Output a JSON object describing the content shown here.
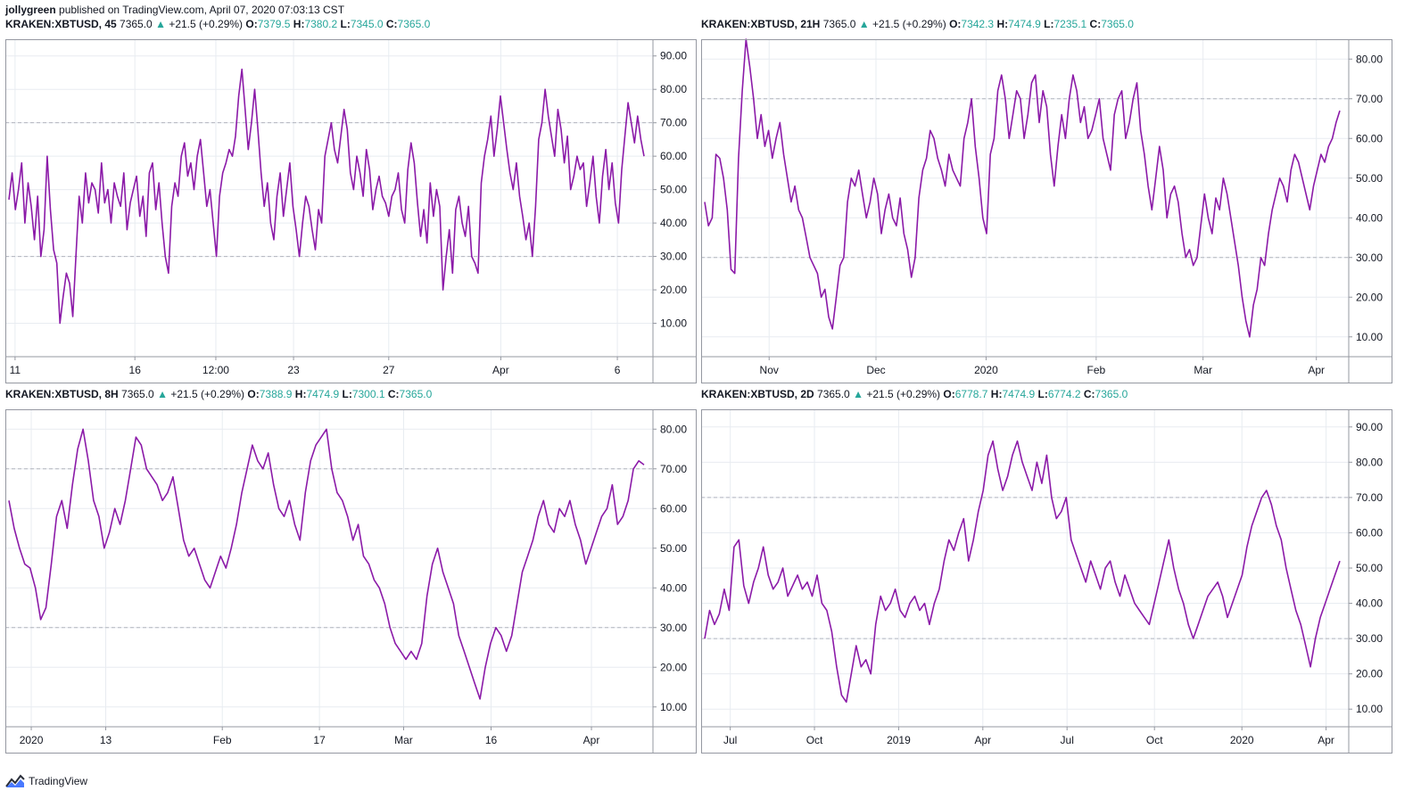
{
  "header": {
    "author": "jollygreen",
    "published_text": "published on TradingView.com, April 07, 2020 07:03:13 CST"
  },
  "footer": {
    "brand": "TradingView"
  },
  "colors": {
    "line": "#8b1aa8",
    "grid": "#e8ecf1",
    "border": "#9598a1",
    "dash": "#b2b5be",
    "up": "#26a69a",
    "text": "#131722"
  },
  "panels": [
    {
      "legend": {
        "symbol": "KRAKEN:XBTUSD, 45",
        "last": "7365.0",
        "change": "+21.5 (+0.29%)",
        "o_label": "O:",
        "o": "7379.5",
        "h_label": "H:",
        "h": "7380.2",
        "l_label": "L:",
        "l": "7345.0",
        "c_label": "C:",
        "c": "7365.0"
      },
      "y_ticks": [
        "90.00",
        "80.00",
        "70.00",
        "60.00",
        "50.00",
        "40.00",
        "30.00",
        "20.00",
        "10.00"
      ],
      "x_ticks": [
        "11",
        "16",
        "12:00",
        "23",
        "27",
        "Apr",
        "6"
      ]
    },
    {
      "legend": {
        "symbol": "KRAKEN:XBTUSD, 21H",
        "last": "7365.0",
        "change": "+21.5 (+0.29%)",
        "o_label": "O:",
        "o": "7342.3",
        "h_label": "H:",
        "h": "7474.9",
        "l_label": "L:",
        "l": "7235.1",
        "c_label": "C:",
        "c": "7365.0"
      },
      "y_ticks": [
        "80.00",
        "70.00",
        "60.00",
        "50.00",
        "40.00",
        "30.00",
        "20.00",
        "10.00"
      ],
      "x_ticks": [
        "Nov",
        "Dec",
        "2020",
        "Feb",
        "Mar",
        "Apr"
      ]
    },
    {
      "legend": {
        "symbol": "KRAKEN:XBTUSD, 8H",
        "last": "7365.0",
        "change": "+21.5 (+0.29%)",
        "o_label": "O:",
        "o": "7388.9",
        "h_label": "H:",
        "h": "7474.9",
        "l_label": "L:",
        "l": "7300.1",
        "c_label": "C:",
        "c": "7365.0"
      },
      "y_ticks": [
        "80.00",
        "70.00",
        "60.00",
        "50.00",
        "40.00",
        "30.00",
        "20.00",
        "10.00"
      ],
      "x_ticks": [
        "2020",
        "13",
        "Feb",
        "17",
        "Mar",
        "16",
        "Apr"
      ]
    },
    {
      "legend": {
        "symbol": "KRAKEN:XBTUSD, 2D",
        "last": "7365.0",
        "change": "+21.5 (+0.29%)",
        "o_label": "O:",
        "o": "6778.7",
        "h_label": "H:",
        "h": "7474.9",
        "l_label": "L:",
        "l": "6774.2",
        "c_label": "C:",
        "c": "7365.0"
      },
      "y_ticks": [
        "90.00",
        "80.00",
        "70.00",
        "60.00",
        "50.00",
        "40.00",
        "30.00",
        "20.00",
        "10.00"
      ],
      "x_ticks": [
        "Jul",
        "Oct",
        "2019",
        "Apr",
        "Jul",
        "Oct",
        "2020",
        "Apr"
      ]
    }
  ],
  "chart_data": [
    {
      "type": "line",
      "xlabel": "",
      "ylabel": "",
      "ylim": [
        0,
        95
      ],
      "bands": [
        30,
        70
      ],
      "series": [
        {
          "values": [
            47,
            55,
            44,
            50,
            58,
            40,
            52,
            45,
            35,
            48,
            30,
            38,
            60,
            44,
            32,
            28,
            10,
            18,
            25,
            22,
            12,
            30,
            48,
            40,
            55,
            46,
            52,
            50,
            43,
            58,
            46,
            50,
            40,
            52,
            48,
            45,
            55,
            38,
            46,
            50,
            54,
            42,
            48,
            36,
            55,
            58,
            44,
            52,
            40,
            30,
            25,
            45,
            52,
            48,
            60,
            64,
            54,
            58,
            50,
            60,
            65,
            55,
            45,
            50,
            40,
            30,
            48,
            55,
            58,
            62,
            60,
            66,
            78,
            86,
            74,
            62,
            70,
            80,
            68,
            55,
            45,
            52,
            40,
            35,
            48,
            55,
            42,
            50,
            58,
            45,
            38,
            30,
            40,
            48,
            45,
            38,
            32,
            44,
            40,
            60,
            65,
            70,
            62,
            58,
            66,
            74,
            68,
            55,
            50,
            60,
            55,
            48,
            62,
            56,
            44,
            50,
            54,
            48,
            46,
            42,
            48,
            50,
            55,
            44,
            40,
            56,
            64,
            58,
            46,
            36,
            44,
            34,
            52,
            42,
            50,
            45,
            20,
            30,
            38,
            25,
            44,
            48,
            40,
            36,
            45,
            30,
            28,
            25,
            52,
            60,
            65,
            72,
            60,
            68,
            78,
            70,
            62,
            55,
            50,
            58,
            48,
            42,
            35,
            40,
            30,
            45,
            65,
            70,
            80,
            72,
            66,
            60,
            74,
            68,
            58,
            66,
            50,
            54,
            60,
            56,
            58,
            45,
            52,
            60,
            48,
            40,
            54,
            62,
            50,
            58,
            46,
            40,
            56,
            66,
            76,
            70,
            64,
            72,
            65,
            60
          ]
        }
      ]
    },
    {
      "type": "line",
      "xlabel": "",
      "ylabel": "",
      "ylim": [
        5,
        85
      ],
      "bands": [
        30,
        70
      ],
      "series": [
        {
          "values": [
            44,
            38,
            40,
            56,
            55,
            50,
            42,
            27,
            26,
            55,
            72,
            85,
            78,
            70,
            60,
            66,
            58,
            62,
            55,
            60,
            64,
            56,
            50,
            44,
            48,
            42,
            40,
            35,
            30,
            28,
            26,
            20,
            22,
            15,
            12,
            20,
            28,
            30,
            44,
            50,
            48,
            52,
            46,
            40,
            44,
            50,
            46,
            36,
            42,
            46,
            40,
            38,
            45,
            36,
            32,
            25,
            30,
            45,
            52,
            55,
            62,
            60,
            55,
            52,
            48,
            56,
            52,
            50,
            48,
            60,
            64,
            70,
            58,
            50,
            40,
            36,
            56,
            60,
            72,
            76,
            70,
            60,
            66,
            72,
            70,
            60,
            66,
            74,
            76,
            64,
            72,
            68,
            56,
            48,
            58,
            66,
            60,
            70,
            76,
            72,
            64,
            68,
            60,
            62,
            66,
            70,
            60,
            56,
            52,
            66,
            70,
            72,
            60,
            64,
            70,
            74,
            62,
            56,
            48,
            42,
            50,
            58,
            52,
            40,
            46,
            48,
            44,
            36,
            30,
            32,
            28,
            30,
            38,
            46,
            40,
            36,
            45,
            42,
            50,
            46,
            40,
            34,
            28,
            20,
            14,
            10,
            18,
            22,
            30,
            28,
            36,
            42,
            46,
            50,
            48,
            44,
            52,
            56,
            54,
            50,
            46,
            42,
            48,
            52,
            56,
            54,
            58,
            60,
            64,
            67
          ]
        }
      ]
    },
    {
      "type": "line",
      "xlabel": "",
      "ylabel": "",
      "ylim": [
        5,
        85
      ],
      "bands": [
        30,
        70
      ],
      "series": [
        {
          "values": [
            62,
            55,
            50,
            46,
            45,
            40,
            32,
            35,
            46,
            58,
            62,
            55,
            66,
            75,
            80,
            72,
            62,
            58,
            50,
            54,
            60,
            56,
            62,
            70,
            78,
            76,
            70,
            68,
            66,
            62,
            64,
            68,
            60,
            52,
            48,
            50,
            46,
            42,
            40,
            44,
            48,
            45,
            50,
            56,
            64,
            70,
            76,
            72,
            70,
            74,
            66,
            60,
            58,
            62,
            56,
            52,
            64,
            72,
            76,
            78,
            80,
            70,
            64,
            62,
            58,
            52,
            56,
            48,
            46,
            42,
            40,
            36,
            30,
            26,
            24,
            22,
            24,
            22,
            26,
            38,
            46,
            50,
            44,
            40,
            36,
            28,
            24,
            20,
            16,
            12,
            20,
            26,
            30,
            28,
            24,
            28,
            36,
            44,
            48,
            52,
            58,
            62,
            56,
            54,
            60,
            58,
            62,
            56,
            52,
            46,
            50,
            54,
            58,
            60,
            66,
            56,
            58,
            62,
            70,
            72,
            71
          ]
        }
      ]
    },
    {
      "type": "line",
      "xlabel": "",
      "ylabel": "",
      "ylim": [
        5,
        95
      ],
      "bands": [
        30,
        70
      ],
      "series": [
        {
          "values": [
            30,
            38,
            34,
            37,
            44,
            38,
            56,
            58,
            45,
            40,
            46,
            50,
            56,
            48,
            44,
            46,
            50,
            42,
            45,
            48,
            44,
            46,
            42,
            48,
            40,
            38,
            32,
            22,
            14,
            12,
            20,
            28,
            22,
            24,
            20,
            34,
            42,
            38,
            40,
            44,
            38,
            36,
            40,
            42,
            38,
            40,
            34,
            40,
            44,
            52,
            58,
            55,
            60,
            64,
            52,
            58,
            66,
            72,
            82,
            86,
            78,
            72,
            76,
            82,
            86,
            80,
            76,
            72,
            80,
            74,
            82,
            70,
            64,
            66,
            70,
            58,
            54,
            50,
            46,
            52,
            48,
            44,
            50,
            52,
            46,
            42,
            48,
            44,
            40,
            38,
            36,
            34,
            40,
            46,
            52,
            58,
            50,
            44,
            40,
            34,
            30,
            34,
            38,
            42,
            44,
            46,
            42,
            36,
            40,
            44,
            48,
            56,
            62,
            66,
            70,
            72,
            68,
            62,
            58,
            50,
            44,
            38,
            34,
            28,
            22,
            30,
            36,
            40,
            44,
            48,
            52
          ]
        }
      ]
    }
  ]
}
